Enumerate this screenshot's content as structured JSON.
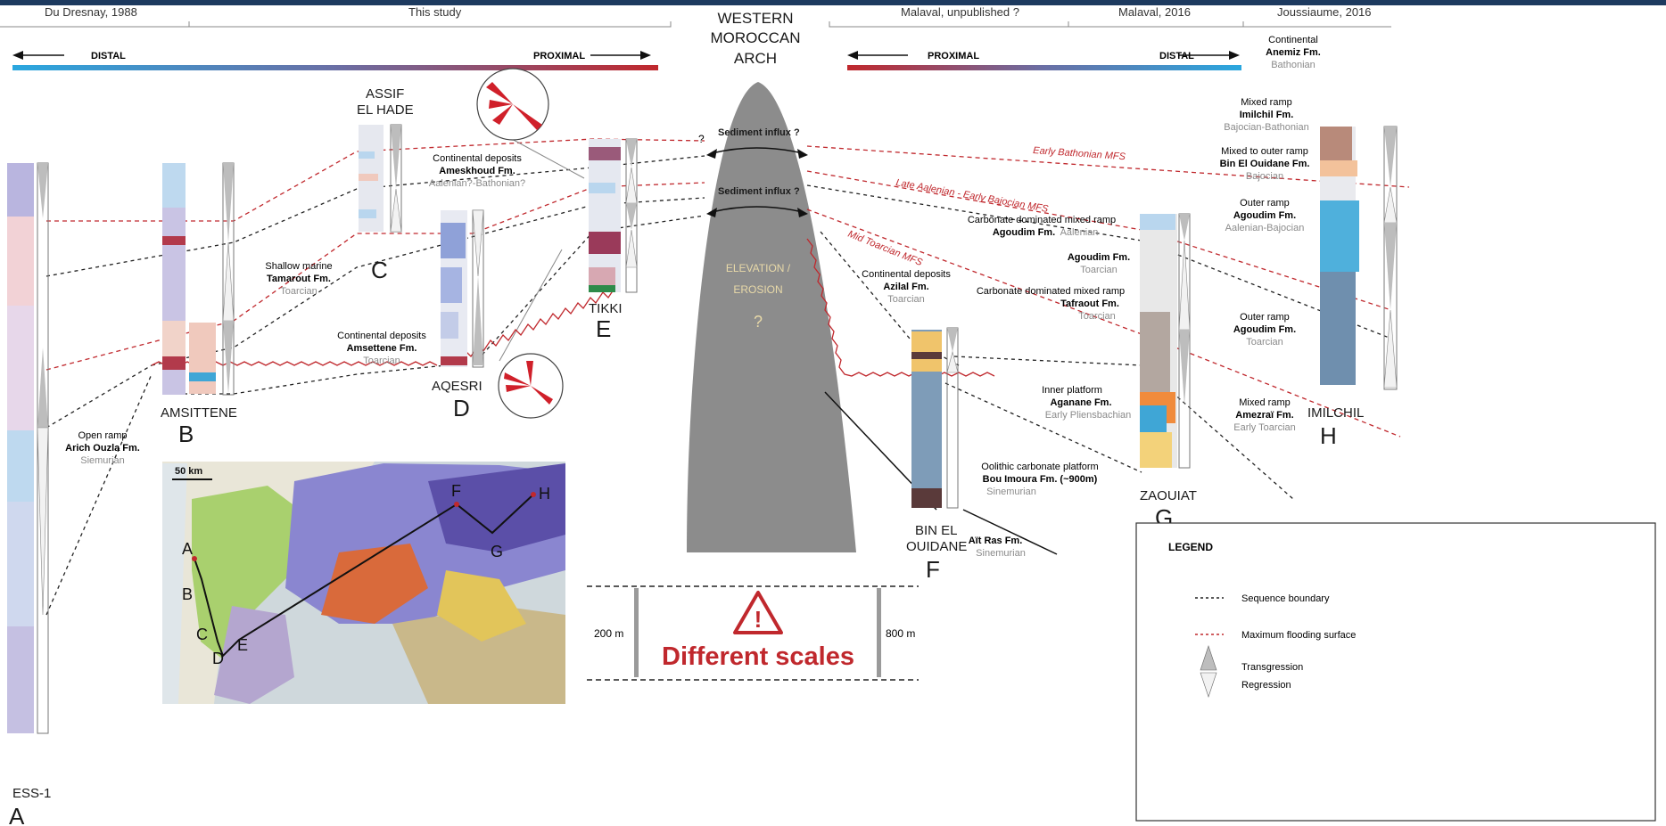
{
  "sources": [
    {
      "text": "Du Dresnay, 1988"
    },
    {
      "text": "This study"
    },
    {
      "text": "Malaval, unpublished ?"
    },
    {
      "text": "Malaval, 2016"
    },
    {
      "text": "Joussiaume, 2016"
    }
  ],
  "arch": {
    "title_line1": "WESTERN",
    "title_line2": "MOROCCAN",
    "title_line3": "ARCH",
    "elevation_line1": "ELEVATION /",
    "elevation_line2": "EROSION",
    "question": "?",
    "influx_upper": "Sediment influx ?",
    "influx_lower": "Sediment influx ?",
    "left_question": "?"
  },
  "gradient_left": {
    "left_label": "DISTAL",
    "right_label": "PROXIMAL"
  },
  "gradient_right": {
    "left_label": "PROXIMAL",
    "right_label": "DISTAL"
  },
  "sections": [
    {
      "name_line1": "ESS-1",
      "name_line2": "",
      "letter": "A"
    },
    {
      "name_line1": "AMSITTENE",
      "name_line2": "",
      "letter": "B"
    },
    {
      "name_line1": "ASSIF",
      "name_line2": "EL HADE",
      "letter": "C"
    },
    {
      "name_line1": "AQESRI",
      "name_line2": "",
      "letter": "D"
    },
    {
      "name_line1": "TIKKI",
      "name_line2": "",
      "letter": "E"
    },
    {
      "name_line1": "BIN EL",
      "name_line2": "OUIDANE",
      "letter": "F"
    },
    {
      "name_line1": "ZAOUIAT",
      "name_line2": "",
      "letter": "G"
    },
    {
      "name_line1": "IMILCHIL",
      "name_line2": "",
      "letter": "H"
    }
  ],
  "formations": [
    {
      "env": "Open ramp",
      "fm": "Arich Ouzla Fm.",
      "age": "Siemurian"
    },
    {
      "env": "Shallow marine",
      "fm": "Tamarout Fm.",
      "age": "Toarcian"
    },
    {
      "env": "Continental deposits",
      "fm": "Ameskhoud Fm.",
      "age": "Aalenian?-Bathonian?"
    },
    {
      "env": "Continental deposits",
      "fm": "Amsettene Fm.",
      "age": "Toarcian"
    },
    {
      "env": "Continental deposits",
      "fm": "Azilal Fm.",
      "age": "Toarcian"
    },
    {
      "env": "Oolithic carbonate platform",
      "fm": "Bou Imoura Fm. (~900m)",
      "age": "Sinemurian"
    },
    {
      "env": "",
      "fm": "Aït Ras Fm.",
      "age": "Sinemurian"
    },
    {
      "env": "Carbonate dominated mixed ramp",
      "fm": "Agoudim Fm.",
      "age": "Aalenian"
    },
    {
      "env": "",
      "fm": "Agoudim Fm.",
      "age": "Toarcian"
    },
    {
      "env": "Carbonate dominated mixed ramp",
      "fm": "Tafraout Fm.",
      "age": "Toarcian"
    },
    {
      "env": "Inner platform",
      "fm": "Aganane Fm.",
      "age": "Early Pliensbachian"
    },
    {
      "env": "Continental",
      "fm": "Anemiz Fm.",
      "age": "Bathonian"
    },
    {
      "env": "Mixed ramp",
      "fm": "Imilchil Fm.",
      "age": "Bajocian-Bathonian"
    },
    {
      "env": "Mixed to outer ramp",
      "fm": "Bin El Ouidane Fm.",
      "age": "Bajocian"
    },
    {
      "env": "Outer ramp",
      "fm": "Agoudim Fm.",
      "age": "Aalenian-Bajocian"
    },
    {
      "env": "Outer ramp",
      "fm": "Agoudim Fm.",
      "age": "Toarcian"
    },
    {
      "env": "Mixed ramp",
      "fm": "Amezraï Fm.",
      "age": "Early Toarcian"
    }
  ],
  "mfs_labels": {
    "early_bathonian": "Early Bathonian MFS",
    "late_aalenian": "Late Aalenian - Early Bajocian MFS",
    "mid_toarcian": "Mid Toarcian MFS"
  },
  "scale": {
    "left": "200 m",
    "right": "800 m",
    "warning": "Different scales",
    "mark": "!"
  },
  "map": {
    "scale_label": "50 km",
    "letters": [
      "A",
      "B",
      "C",
      "D",
      "E",
      "F",
      "G",
      "H"
    ]
  },
  "legend": {
    "title": "LEGEND",
    "sequence_boundary": "Sequence boundary",
    "mfs": "Maximum flooding surface",
    "transgression": "Transgression",
    "regression": "Regression"
  },
  "colors": {
    "mfs": "#c0282d",
    "boundary": "#222222",
    "arch": "#8c8c8c",
    "distal": "#2aa7df",
    "proximal": "#c0282d"
  }
}
